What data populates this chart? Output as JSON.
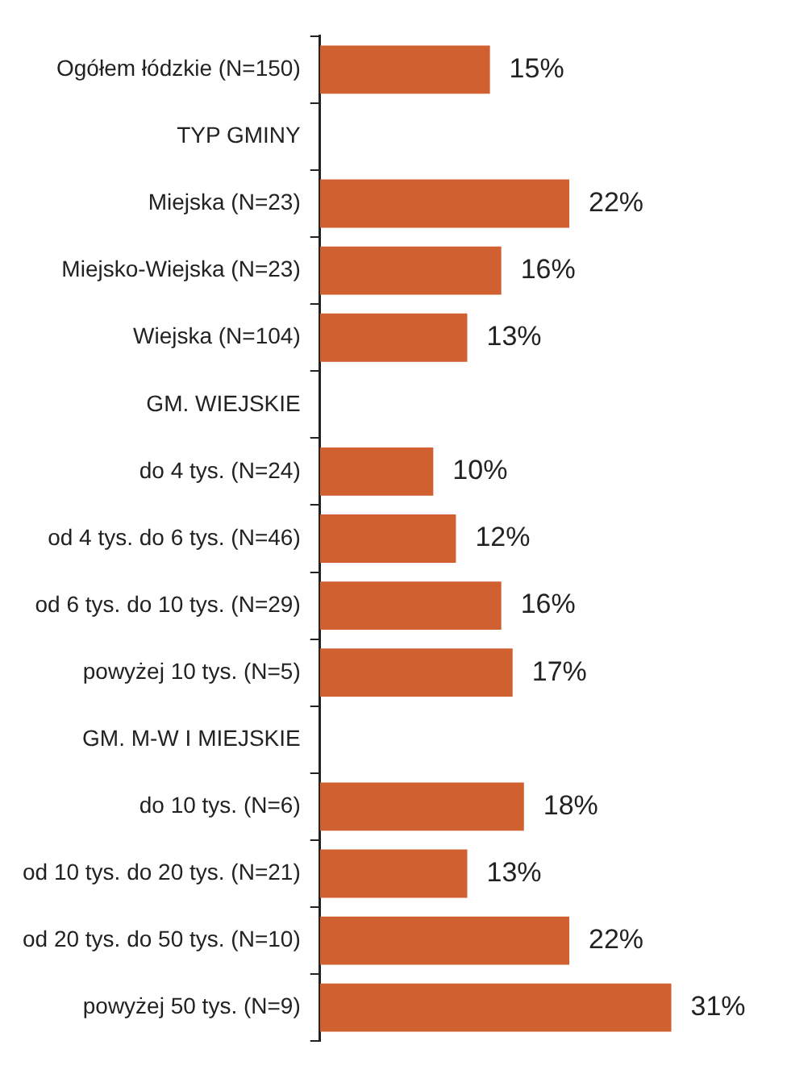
{
  "chart_data": {
    "type": "bar",
    "orientation": "horizontal",
    "categories": [
      "Ogółem łódzkie (N=150)",
      "TYP GMINY",
      "Miejska (N=23)",
      "Miejsko-Wiejska (N=23)",
      "Wiejska (N=104)",
      "GM. WIEJSKIE",
      "do 4 tys. (N=24)",
      "od 4 tys. do 6 tys. (N=46)",
      "od 6 tys. do 10 tys. (N=29)",
      "powyżej 10 tys. (N=5)",
      "GM. M-W I MIEJSKIE",
      "do 10 tys. (N=6)",
      "od 10 tys. do 20 tys. (N=21)",
      "od 20 tys. do 50 tys. (N=10)",
      "powyżej 50 tys. (N=9)"
    ],
    "values": [
      15,
      null,
      22,
      16,
      13,
      null,
      10,
      12,
      16,
      17,
      null,
      18,
      13,
      22,
      31
    ],
    "value_labels": [
      "15%",
      null,
      "22%",
      "16%",
      "13%",
      null,
      "10%",
      "12%",
      "16%",
      "17%",
      null,
      "18%",
      "13%",
      "22%",
      "31%"
    ],
    "color": "#d06030",
    "legend": false
  }
}
